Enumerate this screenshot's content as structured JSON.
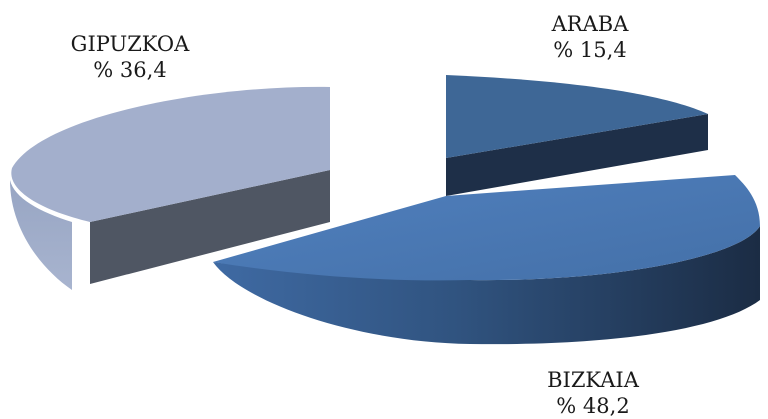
{
  "chart_data": {
    "type": "pie",
    "style": "3d-exploded",
    "title": "",
    "slices": [
      {
        "name": "ARABA",
        "value": 15.4,
        "label": "% 15,4",
        "color": "#3e6796"
      },
      {
        "name": "BIZKAIA",
        "value": 48.2,
        "label": "% 48,2",
        "color": "#4a78b3"
      },
      {
        "name": "GIPUZKOA",
        "value": 36.4,
        "label": "% 36,4",
        "color": "#a3afcc"
      }
    ]
  }
}
